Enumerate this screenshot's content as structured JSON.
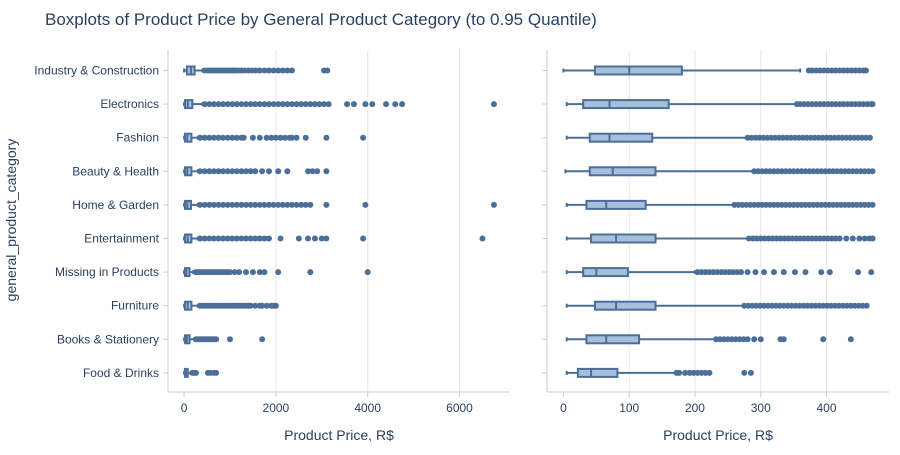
{
  "chart_data": {
    "type": "boxplot",
    "orientation": "horizontal",
    "title": "Boxplots of Product Price by General Product Category (to 0.95 Quantile)",
    "ylabel": "general_product_category",
    "categories": [
      "Industry & Construction",
      "Electronics",
      "Fashion",
      "Beauty & Health",
      "Home & Garden",
      "Entertainment",
      "Missing in Products",
      "Furniture",
      "Books & Stationery",
      "Food & Drinks"
    ],
    "colors": {
      "fill": "#a8bfdc",
      "line": "#4c6f99",
      "grid": "#e8e8e8",
      "axis": "#c8ccd2"
    },
    "panels": [
      {
        "name": "all",
        "xlabel": "Product Price, R$",
        "xlim": [
          -350,
          7100
        ],
        "xticks": [
          0,
          2000,
          4000,
          6000
        ],
        "xtick_labels": [
          "0",
          "2000",
          "4000",
          "6000"
        ],
        "boxes": [
          {
            "min": 0,
            "q1": 60,
            "median": 150,
            "q3": 230,
            "max": 400,
            "outliers": [
              450,
              520,
              580,
              640,
              700,
              760,
              820,
              880,
              940,
              1000,
              1060,
              1120,
              1180,
              1250,
              1320,
              1400,
              1480,
              1560,
              1650,
              1750,
              1850,
              1950,
              2050,
              2150,
              2250,
              2350,
              3050,
              3120
            ]
          },
          {
            "min": 0,
            "q1": 20,
            "median": 80,
            "q3": 180,
            "max": 400,
            "outliers": [
              450,
              550,
              650,
              750,
              850,
              950,
              1050,
              1150,
              1250,
              1350,
              1450,
              1550,
              1650,
              1750,
              1850,
              1950,
              2050,
              2150,
              2250,
              2350,
              2450,
              2550,
              2650,
              2750,
              2850,
              2950,
              3050,
              3150,
              3550,
              3700,
              3950,
              4100,
              4400,
              4600,
              4750,
              6750
            ]
          },
          {
            "min": 0,
            "q1": 20,
            "median": 70,
            "q3": 160,
            "max": 300,
            "outliers": [
              350,
              450,
              550,
              650,
              750,
              850,
              950,
              1050,
              1150,
              1250,
              1300,
              1500,
              1650,
              1800,
              1900,
              2000,
              2100,
              2200,
              2300,
              2350,
              2450,
              2650,
              3100,
              3900
            ]
          },
          {
            "min": 0,
            "q1": 20,
            "median": 70,
            "q3": 160,
            "max": 300,
            "outliers": [
              350,
              450,
              550,
              650,
              750,
              850,
              950,
              1050,
              1150,
              1250,
              1350,
              1450,
              1550,
              1700,
              1850,
              2050,
              2250,
              2700,
              2800,
              2900,
              3100
            ]
          },
          {
            "min": 0,
            "q1": 20,
            "median": 70,
            "q3": 150,
            "max": 300,
            "outliers": [
              350,
              450,
              550,
              650,
              750,
              850,
              950,
              1050,
              1150,
              1250,
              1350,
              1450,
              1550,
              1650,
              1750,
              1850,
              1950,
              2050,
              2150,
              2250,
              2350,
              2450,
              2550,
              2650,
              2750,
              3100,
              3950,
              6750
            ]
          },
          {
            "min": 0,
            "q1": 20,
            "median": 80,
            "q3": 160,
            "max": 300,
            "outliers": [
              350,
              450,
              550,
              650,
              750,
              850,
              950,
              1050,
              1150,
              1250,
              1350,
              1450,
              1550,
              1650,
              1750,
              1850,
              2100,
              2500,
              2700,
              2850,
              3000,
              3100,
              3900,
              6500
            ]
          },
          {
            "min": 0,
            "q1": 20,
            "median": 50,
            "q3": 120,
            "max": 200,
            "outliers": [
              250,
              300,
              350,
              400,
              450,
              500,
              550,
              600,
              650,
              700,
              750,
              800,
              850,
              900,
              950,
              1000,
              1100,
              1200,
              1350,
              1500,
              1650,
              1750,
              2050,
              2750,
              4000
            ]
          },
          {
            "min": 0,
            "q1": 20,
            "median": 80,
            "q3": 160,
            "max": 300,
            "outliers": [
              350,
              400,
              450,
              500,
              550,
              600,
              650,
              700,
              750,
              800,
              850,
              900,
              950,
              1000,
              1050,
              1100,
              1150,
              1200,
              1250,
              1300,
              1350,
              1400,
              1450,
              1550,
              1650,
              1700,
              1800,
              1900,
              1950,
              2000
            ]
          },
          {
            "min": 0,
            "q1": 20,
            "median": 60,
            "q3": 120,
            "max": 220,
            "outliers": [
              260,
              300,
              340,
              380,
              420,
              460,
              500,
              540,
              580,
              620,
              660,
              700,
              1000,
              1700
            ]
          },
          {
            "min": 0,
            "q1": 20,
            "median": 40,
            "q3": 80,
            "max": 140,
            "outliers": [
              180,
              220,
              260,
              520,
              580,
              650,
              700
            ]
          }
        ]
      },
      {
        "name": "to_095_quantile",
        "xlabel": "Product Price, R$",
        "xlim": [
          -25,
          495
        ],
        "xticks": [
          0,
          100,
          200,
          300,
          400
        ],
        "xtick_labels": [
          "0",
          "100",
          "200",
          "300",
          "400"
        ],
        "boxes": [
          {
            "min": 0,
            "q1": 48,
            "median": 100,
            "q3": 180,
            "max": 360,
            "outliers": [
              373,
              378,
              384,
              390,
              396,
              402,
              408,
              414,
              420,
              426,
              432,
              438,
              444,
              450,
              456,
              460
            ]
          },
          {
            "min": 5,
            "q1": 30,
            "median": 70,
            "q3": 160,
            "max": 355,
            "outliers": [
              355,
              360,
              366,
              372,
              378,
              384,
              390,
              396,
              402,
              408,
              414,
              420,
              426,
              432,
              438,
              444,
              450,
              456,
              462,
              468,
              470
            ]
          },
          {
            "min": 5,
            "q1": 40,
            "median": 70,
            "q3": 135,
            "max": 280,
            "outliers": [
              280,
              286,
              292,
              298,
              304,
              310,
              316,
              322,
              328,
              334,
              340,
              346,
              352,
              358,
              364,
              370,
              376,
              382,
              388,
              394,
              400,
              406,
              412,
              418,
              424,
              430,
              436,
              442,
              448,
              454,
              460,
              466
            ]
          },
          {
            "min": 3,
            "q1": 40,
            "median": 75,
            "q3": 140,
            "max": 290,
            "outliers": [
              290,
              296,
              302,
              308,
              314,
              320,
              326,
              332,
              338,
              344,
              350,
              356,
              362,
              368,
              374,
              380,
              386,
              392,
              398,
              404,
              410,
              416,
              422,
              428,
              434,
              440,
              446,
              452,
              458,
              464,
              470
            ]
          },
          {
            "min": 5,
            "q1": 35,
            "median": 65,
            "q3": 125,
            "max": 260,
            "outliers": [
              260,
              266,
              272,
              278,
              284,
              290,
              296,
              302,
              308,
              314,
              320,
              326,
              332,
              338,
              344,
              350,
              356,
              362,
              368,
              374,
              380,
              386,
              392,
              398,
              404,
              410,
              416,
              422,
              428,
              434,
              440,
              446,
              452,
              458,
              464,
              470
            ]
          },
          {
            "min": 5,
            "q1": 42,
            "median": 80,
            "q3": 140,
            "max": 282,
            "outliers": [
              282,
              288,
              294,
              300,
              306,
              312,
              318,
              324,
              330,
              336,
              342,
              348,
              354,
              360,
              366,
              372,
              378,
              384,
              390,
              396,
              402,
              408,
              414,
              420,
              430,
              440,
              450,
              458,
              465,
              470
            ]
          },
          {
            "min": 5,
            "q1": 30,
            "median": 50,
            "q3": 98,
            "max": 200,
            "outliers": [
              204,
              210,
              216,
              222,
              228,
              234,
              240,
              246,
              252,
              258,
              264,
              270,
              280,
              292,
              305,
              320,
              335,
              352,
              368,
              392,
              405,
              448,
              468
            ]
          },
          {
            "min": 5,
            "q1": 48,
            "median": 80,
            "q3": 140,
            "max": 275,
            "outliers": [
              275,
              281,
              287,
              293,
              299,
              305,
              311,
              317,
              323,
              329,
              335,
              341,
              347,
              353,
              359,
              365,
              371,
              377,
              383,
              389,
              395,
              401,
              407,
              413,
              419,
              425,
              431,
              437,
              443,
              449,
              455,
              461
            ]
          },
          {
            "min": 5,
            "q1": 35,
            "median": 65,
            "q3": 115,
            "max": 232,
            "outliers": [
              232,
              238,
              244,
              250,
              256,
              262,
              268,
              274,
              280,
              290,
              300,
              330,
              335,
              395,
              437
            ]
          },
          {
            "min": 5,
            "q1": 22,
            "median": 42,
            "q3": 82,
            "max": 170,
            "outliers": [
              172,
              176,
              185,
              192,
              198,
              204,
              210,
              216,
              222,
              275,
              285
            ]
          }
        ]
      }
    ]
  }
}
